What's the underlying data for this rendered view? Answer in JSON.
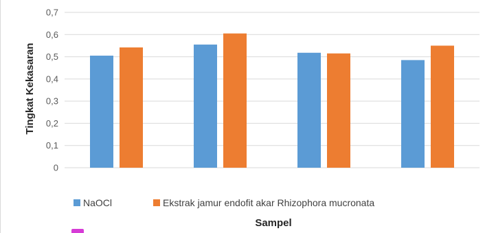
{
  "chart_data": {
    "type": "bar",
    "categories": [
      "",
      "",
      "",
      ""
    ],
    "series": [
      {
        "name": "NaOCl",
        "color": "#5b9bd5",
        "values": [
          0.505,
          0.555,
          0.518,
          0.485
        ]
      },
      {
        "name": "Ekstrak jamur endofit akar Rhizophora mucronata",
        "color": "#ed7d31",
        "values": [
          0.542,
          0.605,
          0.515,
          0.55
        ]
      }
    ],
    "ylabel": "Tingkat Kekasaran",
    "xlabel": "Sampel",
    "ylim": [
      0,
      0.7
    ],
    "yticks": [
      "0",
      "0,1",
      "0,2",
      "0,3",
      "0,4",
      "0,5",
      "0,6",
      "0,7"
    ],
    "grid": true,
    "legend_position": "bottom"
  }
}
